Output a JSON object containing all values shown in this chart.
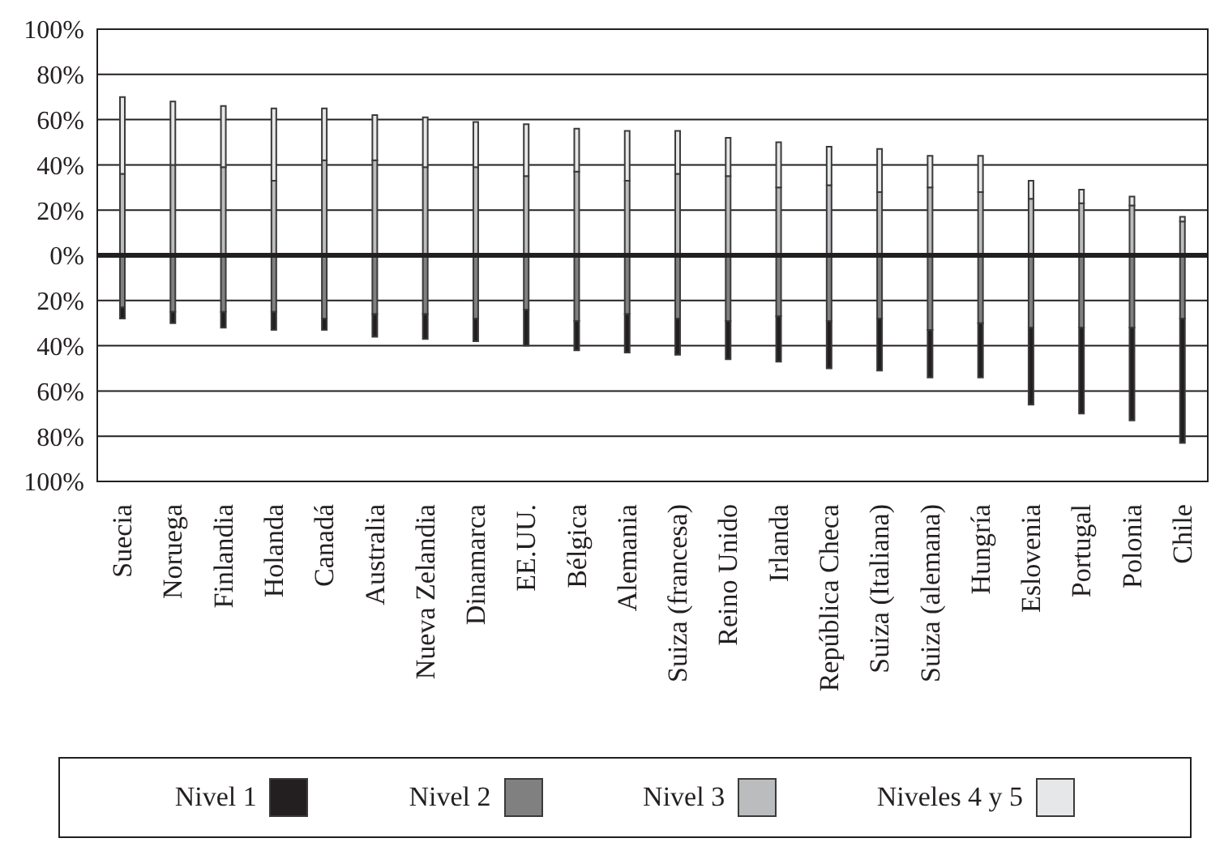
{
  "chart_data": {
    "type": "bar",
    "stacked": true,
    "categories": [
      "Suecia",
      "Noruega",
      "Finlandia",
      "Holanda",
      "Canadá",
      "Australia",
      "Nueva Zelandia",
      "Dinamarca",
      "EE.UU.",
      "Bélgica",
      "Alemania",
      "Suiza (francesa)",
      "Reino Unido",
      "Irlanda",
      "República Checa",
      "Suiza (Italiana)",
      "Suiza (alemana)",
      "Hungría",
      "Eslovenia",
      "Portugal",
      "Polonia",
      "Chile"
    ],
    "series": [
      {
        "name": "Nivel 2",
        "color": "#808080",
        "values": [
          -23,
          -25,
          -25,
          -25,
          -28,
          -26,
          -26,
          -28,
          -24,
          -29,
          -26,
          -28,
          -29,
          -27,
          -29,
          -28,
          -33,
          -30,
          -32,
          -32,
          -32,
          -28
        ]
      },
      {
        "name": "Nivel 1",
        "color": "#231f20",
        "values": [
          -5,
          -5,
          -7,
          -8,
          -5,
          -10,
          -11,
          -10,
          -16,
          -13,
          -17,
          -16,
          -17,
          -20,
          -21,
          -23,
          -21,
          -24,
          -34,
          -38,
          -41,
          -55
        ]
      },
      {
        "name": "Nivel 3",
        "color": "#bbbcbe",
        "values": [
          36,
          40,
          39,
          33,
          42,
          42,
          39,
          39,
          35,
          37,
          33,
          36,
          35,
          30,
          31,
          28,
          30,
          28,
          25,
          23,
          22,
          15
        ]
      },
      {
        "name": "Niveles 4 y 5",
        "color": "#e6e7e8",
        "values": [
          34,
          28,
          27,
          32,
          23,
          20,
          22,
          20,
          23,
          19,
          22,
          19,
          17,
          20,
          17,
          19,
          14,
          16,
          8,
          6,
          4,
          2
        ]
      }
    ],
    "ylim": [
      -100,
      100
    ],
    "yticks": [
      {
        "value": -100,
        "label": "100%"
      },
      {
        "value": -80,
        "label": "80%"
      },
      {
        "value": -60,
        "label": "60%"
      },
      {
        "value": -40,
        "label": "40%"
      },
      {
        "value": -20,
        "label": "20%"
      },
      {
        "value": 0,
        "label": "0%"
      },
      {
        "value": 20,
        "label": "20%"
      },
      {
        "value": 40,
        "label": "40%"
      },
      {
        "value": 60,
        "label": "60%"
      },
      {
        "value": 80,
        "label": "80%"
      },
      {
        "value": 100,
        "label": "100%"
      }
    ],
    "grid": "y",
    "ref_lines": [
      {
        "axis": "y",
        "value": 0,
        "color": "#231f20"
      }
    ],
    "legend": "bottom"
  }
}
